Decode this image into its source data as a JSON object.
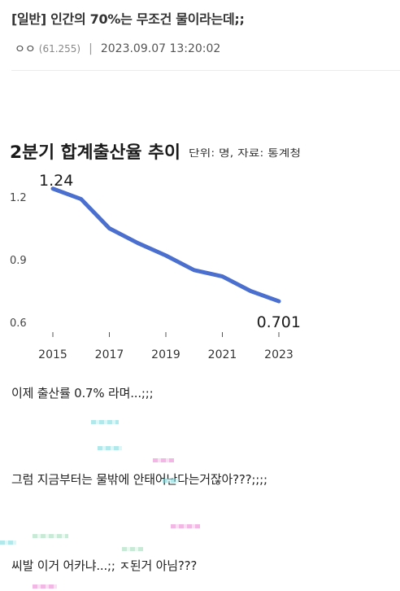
{
  "post": {
    "title": "[일반] 인간의 70%는 무조건 물이라는데;;",
    "author": "ㅇㅇ",
    "ip": "(61.255)",
    "separator": "|",
    "date": "2023.09.07 13:20:02"
  },
  "chart_data": {
    "type": "line",
    "title": "2분기 합계출산율 추이",
    "subtitle": "단위: 명, 자료: 통계청",
    "xlabel": "",
    "ylabel": "",
    "x": [
      2015,
      2016,
      2017,
      2018,
      2019,
      2020,
      2021,
      2022,
      2023
    ],
    "values": [
      1.24,
      1.19,
      1.05,
      0.98,
      0.92,
      0.85,
      0.82,
      0.75,
      0.701
    ],
    "x_ticks": [
      2015,
      2017,
      2019,
      2021,
      2023
    ],
    "x_tick_labels": [
      "2015",
      "2017",
      "2019",
      "2021",
      "2023"
    ],
    "y_ticks": [
      0.6,
      0.9,
      1.2
    ],
    "y_tick_labels": [
      "0.6",
      "0.9",
      "1.2"
    ],
    "xlim": [
      2015,
      2023
    ],
    "ylim": [
      0.6,
      1.2
    ],
    "data_labels": [
      {
        "x": 2015,
        "text": "1.24"
      },
      {
        "x": 2023,
        "text": "0.701"
      }
    ],
    "grid": false,
    "line_color": "#4a6fcf"
  },
  "body": {
    "line1": "이제 출산률 0.7% 라며...;;;",
    "line2": "그럼 지금부터는 물밖에 안태어난다는거잖아???;;;;",
    "line3": "씨발 이거 어카냐...;; ㅈ된거 아님???"
  }
}
